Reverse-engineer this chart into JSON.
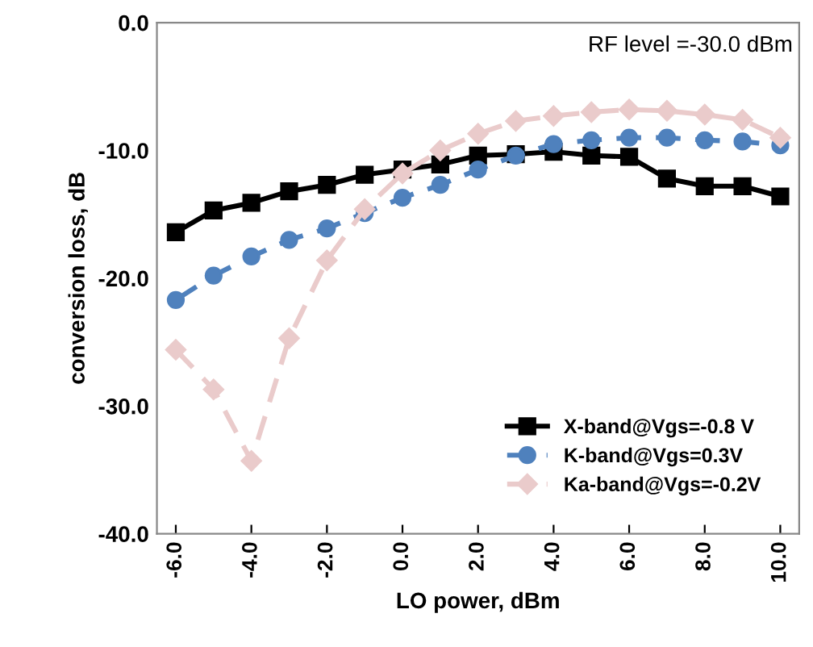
{
  "chart_data": {
    "type": "line",
    "xlabel": "LO power, dBm",
    "ylabel": "conversion loss, dB",
    "x": [
      -6,
      -5,
      -4,
      -3,
      -2,
      -1,
      0,
      1,
      2,
      3,
      4,
      5,
      6,
      7,
      8,
      9,
      10
    ],
    "series": [
      {
        "name": "X-band@Vgs=-0.8 V",
        "color": "#000000",
        "marker": "square",
        "line_style": "solid",
        "values": [
          -16.4,
          -14.7,
          -14.1,
          -13.2,
          -12.7,
          -11.9,
          -11.5,
          -11.1,
          -10.4,
          -10.3,
          -10.1,
          -10.4,
          -10.5,
          -12.2,
          -12.8,
          -12.8,
          -13.6
        ]
      },
      {
        "name": "K-band@Vgs=0.3V",
        "color": "#4f81bd",
        "marker": "circle",
        "line_style": "dashed",
        "values": [
          -21.7,
          -19.8,
          -18.3,
          -17.0,
          -16.1,
          -14.9,
          -13.7,
          -12.7,
          -11.5,
          -10.4,
          -9.5,
          -9.2,
          -9.0,
          -9.0,
          -9.2,
          -9.3,
          -9.6
        ]
      },
      {
        "name": "Ka-band@Vgs=-0.2V",
        "color": "#eacbcb",
        "marker": "diamond",
        "line_style": "dashed",
        "values": [
          -25.6,
          -28.7,
          -34.3,
          -24.7,
          -18.6,
          -14.6,
          -11.8,
          -10.0,
          -8.7,
          -7.7,
          -7.3,
          -7.0,
          -6.8,
          -6.9,
          -7.2,
          -7.6,
          -9.0
        ]
      }
    ],
    "xlim": [
      -6.5,
      10.5
    ],
    "xticks": [
      {
        "value": -6,
        "label": "-6.0"
      },
      {
        "value": -4,
        "label": "-4.0"
      },
      {
        "value": -2,
        "label": "-2.0"
      },
      {
        "value": 0,
        "label": "0.0"
      },
      {
        "value": 2,
        "label": "2.0"
      },
      {
        "value": 4,
        "label": "4.0"
      },
      {
        "value": 6,
        "label": "6.0"
      },
      {
        "value": 8,
        "label": "8.0"
      },
      {
        "value": 10,
        "label": "10.0"
      }
    ],
    "ylim": [
      -40,
      0
    ],
    "yticks": [
      {
        "value": -40,
        "label": "-40.0"
      },
      {
        "value": -30,
        "label": "-30.0"
      },
      {
        "value": -20,
        "label": "-20.0"
      },
      {
        "value": -10,
        "label": "-10.0"
      },
      {
        "value": 0,
        "label": "0.0"
      }
    ],
    "annotations": [
      "RF level =-30.0 dBm"
    ],
    "legend": "bottom right",
    "grid": false
  }
}
